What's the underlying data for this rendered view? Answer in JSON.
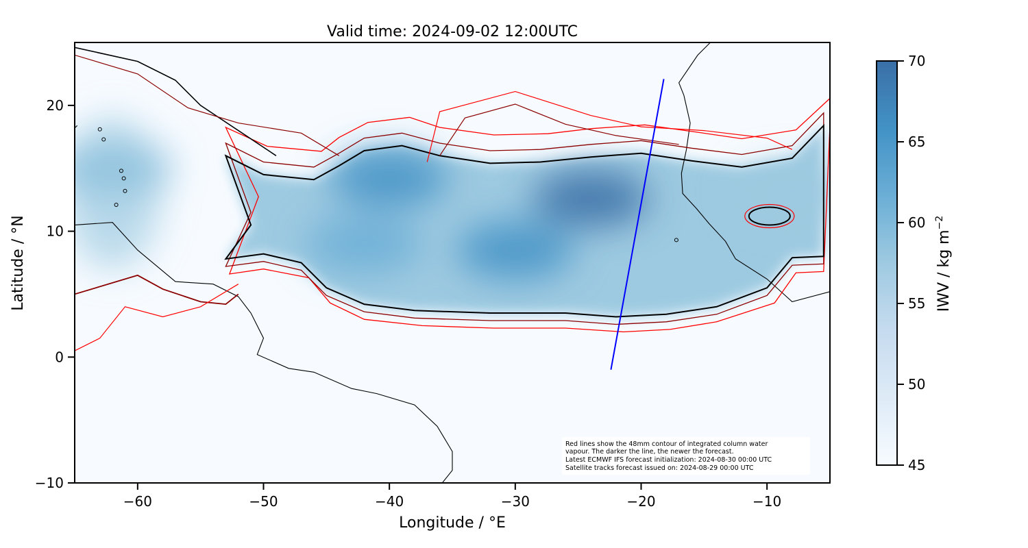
{
  "chart_data": {
    "type": "heatmap",
    "title": "Valid time: 2024-09-02 12:00UTC",
    "xlabel": "Longitude / °E",
    "ylabel": "Latitude / °N",
    "xlim": [
      -65,
      -5
    ],
    "ylim": [
      -10,
      25
    ],
    "xticks": [
      -60,
      -50,
      -40,
      -30,
      -20,
      -10
    ],
    "yticks": [
      -10,
      0,
      10,
      20
    ],
    "xtick_labels": [
      "−60",
      "−50",
      "−40",
      "−30",
      "−20",
      "−10"
    ],
    "ytick_labels": [
      "−10",
      "0",
      "10",
      "20"
    ],
    "colorbar": {
      "label": "IWV / kg m",
      "label_superscript": "−2",
      "range": [
        45,
        70
      ],
      "ticks": [
        45,
        50,
        55,
        60,
        65,
        70
      ],
      "tick_labels": [
        "45",
        "50",
        "55",
        "60",
        "65",
        "70"
      ],
      "colormap": "Blues",
      "colors": [
        "#f7fbff",
        "#deebf7",
        "#c6dbef",
        "#9ecae1",
        "#6baed6",
        "#4292c6",
        "#3a6fa6"
      ]
    },
    "annotation": [
      "Red lines show the 48mm contour of integrated column water",
      "vapour. The darker the line, the newer the forecast.",
      "Latest ECMWF IFS forecast initialization: 2024-08-30 00:00 UTC",
      "Satellite tracks forecast issued on: 2024-08-29 00:00 UTC"
    ],
    "satellite_track": {
      "color": "#0000ff",
      "points": [
        [
          -22.4,
          -1.0
        ],
        [
          -18.2,
          22.1
        ]
      ]
    },
    "contour_colors": [
      "#ff0000",
      "#8b0000",
      "#000000"
    ],
    "moisture_band": {
      "contour_48mm_newest": [
        [
          -53,
          16.0
        ],
        [
          -50,
          14.5
        ],
        [
          -46,
          14.1
        ],
        [
          -44,
          15.2
        ],
        [
          -42,
          16.4
        ],
        [
          -39,
          16.8
        ],
        [
          -36,
          16.0
        ],
        [
          -32,
          15.4
        ],
        [
          -28,
          15.5
        ],
        [
          -24,
          15.9
        ],
        [
          -20,
          16.2
        ],
        [
          -16,
          15.6
        ],
        [
          -12,
          15.1
        ],
        [
          -8,
          15.8
        ],
        [
          -5.5,
          18.4
        ],
        [
          -5.5,
          8.0
        ],
        [
          -8,
          7.9
        ],
        [
          -10,
          5.5
        ],
        [
          -14,
          4.0
        ],
        [
          -18,
          3.4
        ],
        [
          -22,
          3.2
        ],
        [
          -26,
          3.5
        ],
        [
          -32,
          3.5
        ],
        [
          -38,
          3.7
        ],
        [
          -42,
          4.2
        ],
        [
          -45,
          5.5
        ],
        [
          -47,
          7.5
        ],
        [
          -50,
          8.2
        ],
        [
          -53,
          7.8
        ],
        [
          -51,
          10.5
        ]
      ],
      "iwv_maxima": [
        {
          "lon": -40,
          "lat": 14.2,
          "iwv": 66
        },
        {
          "lon": -24,
          "lat": 12.6,
          "iwv": 68
        },
        {
          "lon": -30,
          "lat": 8.5,
          "iwv": 64
        },
        {
          "lon": -42,
          "lat": 9.0,
          "iwv": 62
        },
        {
          "lon": -62,
          "lat": 15.0,
          "iwv": 60
        },
        {
          "lon": -8,
          "lat": 13.0,
          "iwv": 58
        }
      ]
    }
  }
}
